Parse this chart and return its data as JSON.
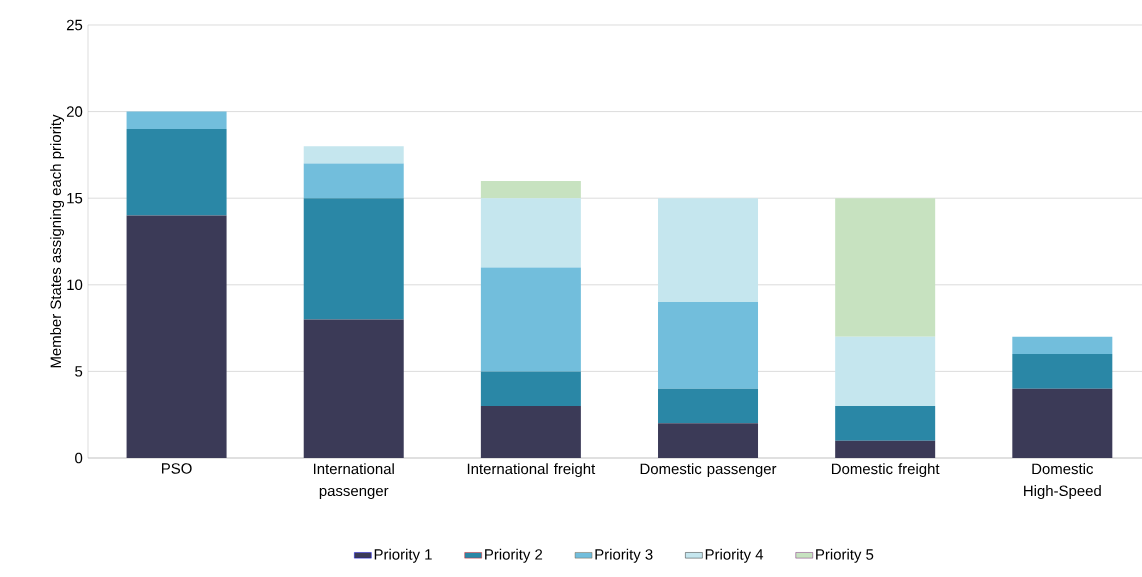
{
  "chart_data": {
    "type": "bar",
    "stacked": true,
    "ylabel": "Member States assigning each priority",
    "categories": [
      "PSO",
      "International passenger",
      "International freight",
      "Domestic passenger",
      "Domestic freight",
      "Domestic High-Speed"
    ],
    "series": [
      {
        "name": "Priority 1",
        "color": "#3b3a57",
        "values": [
          14,
          8,
          3,
          2,
          1,
          4
        ]
      },
      {
        "name": "Priority 2",
        "color": "#2a87a6",
        "values": [
          5,
          7,
          2,
          2,
          2,
          2
        ]
      },
      {
        "name": "Priority 3",
        "color": "#72bedc",
        "values": [
          1,
          2,
          6,
          5,
          null,
          1
        ]
      },
      {
        "name": "Priority 4",
        "color": "#c5e6ee",
        "values": [
          null,
          1,
          4,
          6,
          4,
          null
        ]
      },
      {
        "name": "Priority 5",
        "color": "#c7e2c0",
        "values": [
          null,
          null,
          1,
          null,
          8,
          null
        ]
      }
    ],
    "ylim": [
      0,
      25
    ],
    "yticks": [
      0,
      5,
      10,
      15,
      20,
      25
    ],
    "grid": "y",
    "legend": "bottom"
  }
}
